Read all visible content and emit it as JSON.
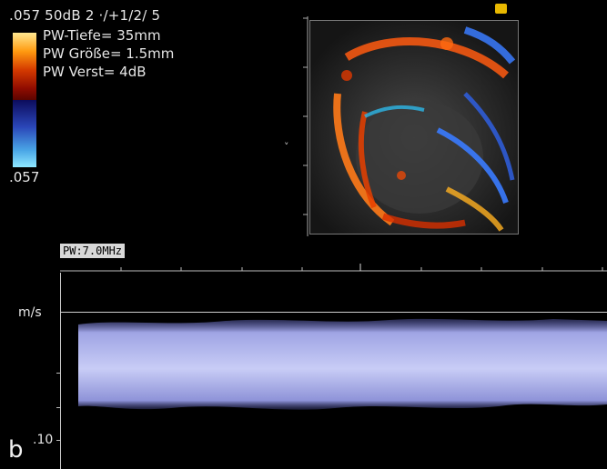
{
  "readout": {
    "line1": ".057 50dB  2 ·/+1/2/ 5",
    "params": [
      "PW-Tiefe= 35mm",
      "PW Größe= 1.5mm",
      "PW Verst=   4dB"
    ],
    "scale_bottom": ".057"
  },
  "pw": {
    "label": "PW:7.0MHz",
    "unit": "m/s",
    "scale": ".10"
  },
  "panel": {
    "letter": "b"
  },
  "colors": {
    "doppler_red": "#ff5a10",
    "doppler_blue": "#3a7bff",
    "spectrum": "#b8bdf0"
  }
}
